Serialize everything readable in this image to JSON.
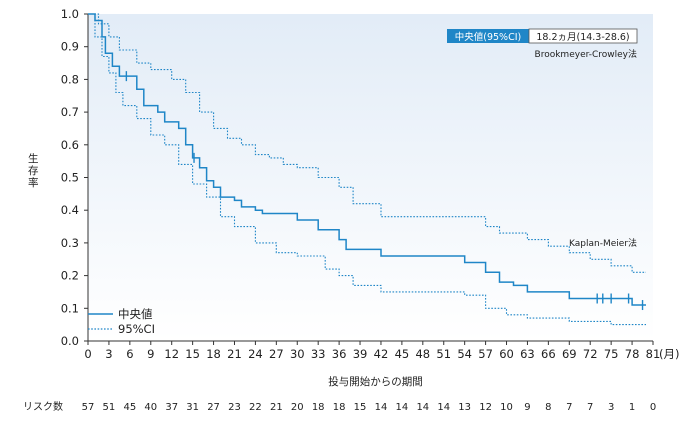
{
  "chart_data": {
    "type": "line",
    "ylabel": "生存率",
    "xlabel": "投与開始からの期間",
    "x_unit": "(月)",
    "xlim": [
      0,
      81
    ],
    "ylim": [
      0,
      1.0
    ],
    "x_ticks": [
      0,
      3,
      6,
      9,
      12,
      15,
      18,
      21,
      24,
      27,
      30,
      33,
      36,
      39,
      42,
      45,
      48,
      51,
      54,
      57,
      60,
      63,
      66,
      69,
      72,
      75,
      78,
      81
    ],
    "y_ticks": [
      "0.0",
      "0.1",
      "0.2",
      "0.3",
      "0.4",
      "0.5",
      "0.6",
      "0.7",
      "0.8",
      "0.9",
      "1.0"
    ],
    "grid": false,
    "legend_position": "bottom-left",
    "median_box": {
      "label": "中央値(95%CI)",
      "value": "18.2ヵ月(14.3-28.6)",
      "method": "Brookmeyer-Crowley法"
    },
    "km_label": "Kaplan-Meier法",
    "series": [
      {
        "name": "中央値",
        "style": "solid",
        "color": "#1f86c7",
        "points": [
          [
            0,
            1.0
          ],
          [
            1,
            0.98
          ],
          [
            2,
            0.93
          ],
          [
            2.5,
            0.88
          ],
          [
            3.5,
            0.84
          ],
          [
            4.5,
            0.81
          ],
          [
            7,
            0.77
          ],
          [
            8,
            0.72
          ],
          [
            10,
            0.7
          ],
          [
            11,
            0.67
          ],
          [
            13,
            0.65
          ],
          [
            14,
            0.6
          ],
          [
            15,
            0.56
          ],
          [
            16,
            0.53
          ],
          [
            17,
            0.49
          ],
          [
            18,
            0.47
          ],
          [
            19,
            0.44
          ],
          [
            21,
            0.43
          ],
          [
            22,
            0.41
          ],
          [
            24,
            0.4
          ],
          [
            25,
            0.39
          ],
          [
            27,
            0.39
          ],
          [
            30,
            0.37
          ],
          [
            33,
            0.34
          ],
          [
            36,
            0.31
          ],
          [
            37,
            0.28
          ],
          [
            42,
            0.26
          ],
          [
            54,
            0.24
          ],
          [
            57,
            0.21
          ],
          [
            59,
            0.18
          ],
          [
            61,
            0.17
          ],
          [
            63,
            0.15
          ],
          [
            69,
            0.13
          ],
          [
            78,
            0.11
          ],
          [
            80,
            0.11
          ]
        ],
        "censor_x": [
          5.5,
          15.2,
          73,
          73.8,
          75,
          77.5,
          79.5
        ]
      },
      {
        "name": "95%CI",
        "style": "dotted",
        "color": "#1f86c7",
        "bound": "upper",
        "points": [
          [
            0,
            1.0
          ],
          [
            1.5,
            0.97
          ],
          [
            3,
            0.93
          ],
          [
            4.5,
            0.89
          ],
          [
            7,
            0.85
          ],
          [
            9,
            0.83
          ],
          [
            12,
            0.8
          ],
          [
            14,
            0.76
          ],
          [
            16,
            0.7
          ],
          [
            18,
            0.65
          ],
          [
            20,
            0.62
          ],
          [
            22,
            0.6
          ],
          [
            24,
            0.57
          ],
          [
            26,
            0.56
          ],
          [
            28,
            0.54
          ],
          [
            30,
            0.53
          ],
          [
            33,
            0.5
          ],
          [
            36,
            0.47
          ],
          [
            38,
            0.42
          ],
          [
            42,
            0.38
          ],
          [
            52,
            0.38
          ],
          [
            57,
            0.35
          ],
          [
            59,
            0.33
          ],
          [
            63,
            0.31
          ],
          [
            66,
            0.29
          ],
          [
            69,
            0.27
          ],
          [
            72,
            0.25
          ],
          [
            75,
            0.23
          ],
          [
            78,
            0.21
          ],
          [
            80,
            0.21
          ]
        ]
      },
      {
        "name": "95%CI",
        "style": "dotted",
        "color": "#1f86c7",
        "bound": "lower",
        "points": [
          [
            0,
            1.0
          ],
          [
            1,
            0.93
          ],
          [
            2,
            0.87
          ],
          [
            3,
            0.82
          ],
          [
            4,
            0.76
          ],
          [
            5,
            0.72
          ],
          [
            7,
            0.68
          ],
          [
            9,
            0.63
          ],
          [
            11,
            0.6
          ],
          [
            13,
            0.54
          ],
          [
            15,
            0.48
          ],
          [
            17,
            0.44
          ],
          [
            19,
            0.38
          ],
          [
            21,
            0.35
          ],
          [
            24,
            0.3
          ],
          [
            27,
            0.27
          ],
          [
            30,
            0.26
          ],
          [
            34,
            0.22
          ],
          [
            36,
            0.2
          ],
          [
            38,
            0.17
          ],
          [
            42,
            0.15
          ],
          [
            54,
            0.14
          ],
          [
            57,
            0.1
          ],
          [
            60,
            0.08
          ],
          [
            63,
            0.07
          ],
          [
            69,
            0.06
          ],
          [
            75,
            0.05
          ],
          [
            80,
            0.05
          ]
        ]
      }
    ],
    "risk_label": "リスク数",
    "risk_numbers": [
      57,
      51,
      45,
      40,
      37,
      31,
      27,
      23,
      22,
      21,
      20,
      18,
      18,
      15,
      14,
      14,
      14,
      14,
      13,
      12,
      10,
      9,
      8,
      7,
      7,
      3,
      1,
      0
    ]
  },
  "colors": {
    "line": "#1f86c7",
    "box_fill": "#1f86c7",
    "bg_top": "#e5eef8",
    "bg_bottom": "#ffffff"
  }
}
